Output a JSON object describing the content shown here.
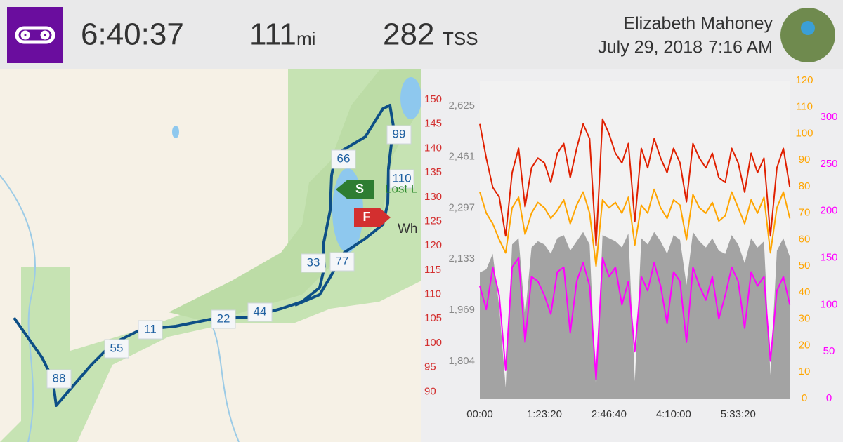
{
  "header": {
    "duration": "6:40:37",
    "distance": "111",
    "distance_unit": "mi",
    "tss": "282",
    "tss_unit": "TSS",
    "athlete": "Elizabeth Mahoney",
    "date": "July 29, 2018",
    "time": "7:16 AM"
  },
  "map": {
    "markers": [
      "99",
      "66",
      "110",
      "33",
      "77",
      "22",
      "44",
      "11",
      "55",
      "88"
    ],
    "start": "S",
    "finish": "F",
    "places": [
      "Lost L",
      "Wh"
    ]
  },
  "chart_data": {
    "type": "line",
    "x": [
      0,
      500,
      1000,
      1500,
      2000,
      2500,
      3000,
      3500,
      4000,
      4500,
      5000,
      5500,
      6000,
      6500,
      7000,
      7500,
      8000,
      8500,
      9000,
      9500,
      10000,
      10500,
      11000,
      11500,
      12000,
      12500,
      13000,
      13500,
      14000,
      14500,
      15000,
      15500,
      16000,
      16500,
      17000,
      17500,
      18000,
      18500,
      19000,
      19500,
      20000,
      20500,
      21000,
      21500,
      22000,
      22500,
      23000,
      23500,
      24000
    ],
    "xlim": [
      0,
      24037
    ],
    "xticks": [
      {
        "value": 0,
        "label": "00:00"
      },
      {
        "value": 5000,
        "label": "1:23:20"
      },
      {
        "value": 10000,
        "label": "2:46:40"
      },
      {
        "value": 15000,
        "label": "4:10:00"
      },
      {
        "value": 20000,
        "label": "5:33:20"
      }
    ],
    "ylim": [
      1685,
      2706
    ],
    "yticks": [
      {
        "value": 1804,
        "label": "1,804"
      },
      {
        "value": 1969,
        "label": "1,969"
      },
      {
        "value": 2133,
        "label": "2,133"
      },
      {
        "value": 2297,
        "label": "2,297"
      },
      {
        "value": 2461,
        "label": "2,461"
      },
      {
        "value": 2625,
        "label": "2,625"
      }
    ],
    "y2lim": [
      88.6,
      153.9
    ],
    "y2ticks": [
      90,
      95,
      100,
      105,
      110,
      115,
      120,
      125,
      130,
      135,
      140,
      145,
      150
    ],
    "y3lim": [
      0,
      120
    ],
    "y3ticks": [
      0,
      10,
      20,
      30,
      40,
      50,
      60,
      70,
      80,
      90,
      100,
      110,
      120
    ],
    "y4lim": [
      0,
      339
    ],
    "y4ticks": [
      0,
      50,
      100,
      150,
      200,
      250,
      300
    ],
    "series": [
      {
        "kind": "area",
        "axis": "y",
        "color": "#a3a3a3",
        "values": [
          2090,
          2100,
          2150,
          1980,
          1720,
          2180,
          2200,
          1950,
          2170,
          2190,
          2180,
          2150,
          2200,
          2210,
          2160,
          2190,
          2220,
          2180,
          1710,
          2210,
          2200,
          2190,
          2170,
          2215,
          1740,
          2200,
          2180,
          2220,
          2190,
          2150,
          2210,
          2195,
          2050,
          2220,
          2190,
          2170,
          2200,
          2160,
          2150,
          2210,
          2180,
          2120,
          2200,
          2170,
          2190,
          1760,
          2160,
          2200,
          2140
        ]
      },
      {
        "kind": "line",
        "axis": "y4",
        "color": "#ff00ff",
        "values": [
          120,
          95,
          140,
          110,
          30,
          140,
          150,
          60,
          130,
          125,
          110,
          90,
          135,
          140,
          70,
          125,
          145,
          120,
          20,
          150,
          130,
          140,
          100,
          125,
          50,
          130,
          115,
          145,
          120,
          80,
          135,
          125,
          60,
          140,
          120,
          105,
          130,
          85,
          110,
          140,
          125,
          75,
          135,
          120,
          130,
          40,
          115,
          130,
          100
        ]
      },
      {
        "kind": "line",
        "axis": "y3",
        "color": "#ffa500",
        "values": [
          78,
          70,
          66,
          60,
          55,
          72,
          76,
          62,
          70,
          74,
          72,
          68,
          71,
          75,
          66,
          73,
          78,
          70,
          50,
          75,
          72,
          74,
          70,
          76,
          58,
          73,
          70,
          79,
          72,
          68,
          75,
          73,
          60,
          77,
          72,
          70,
          74,
          67,
          69,
          78,
          72,
          66,
          75,
          70,
          76,
          55,
          72,
          78,
          68
        ]
      },
      {
        "kind": "line",
        "axis": "y2",
        "color": "#e02000",
        "values": [
          145,
          138,
          132,
          130,
          122,
          135,
          140,
          128,
          136,
          138,
          137,
          133,
          139,
          141,
          134,
          140,
          145,
          142,
          120,
          146,
          143,
          139,
          137,
          141,
          125,
          140,
          136,
          142,
          138,
          135,
          140,
          137,
          129,
          141,
          138,
          136,
          139,
          134,
          133,
          140,
          137,
          131,
          139,
          135,
          138,
          122,
          136,
          140,
          132
        ]
      }
    ]
  }
}
